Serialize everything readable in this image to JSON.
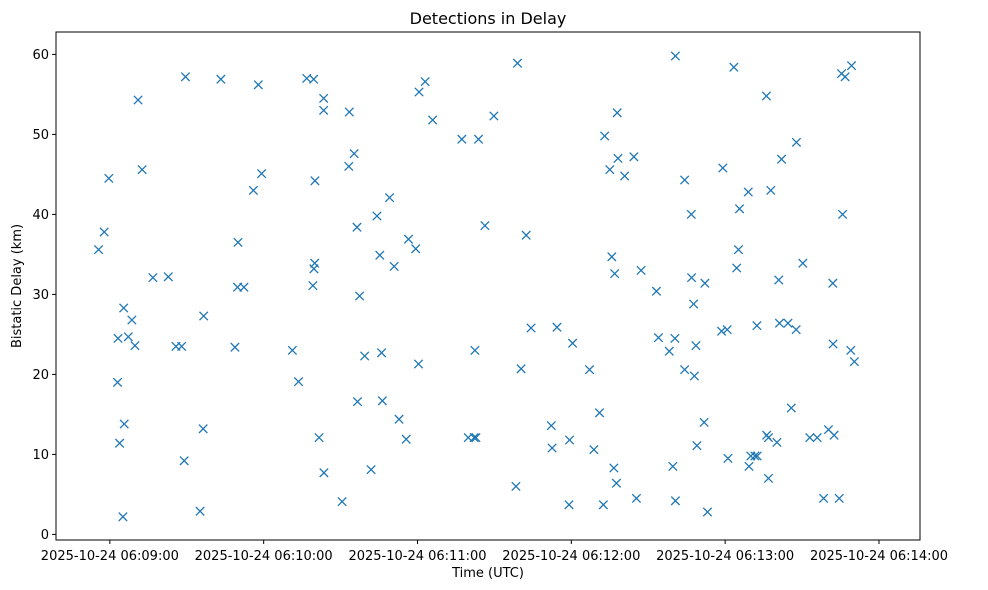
{
  "chart_data": {
    "type": "scatter",
    "title": "Detections in Delay",
    "xlabel": "Time (UTC)",
    "ylabel": "Bistatic Delay (km)",
    "marker": "x",
    "color": "#1f77b4",
    "x_unit": "seconds after 2025-10-24 06:09:00",
    "xlim": [
      -21,
      316
    ],
    "ylim": [
      -0.7,
      62.8
    ],
    "x_ticks": [
      {
        "value": 0,
        "label": "2025-10-24 06:09:00"
      },
      {
        "value": 60,
        "label": "2025-10-24 06:10:00"
      },
      {
        "value": 120,
        "label": "2025-10-24 06:11:00"
      },
      {
        "value": 180,
        "label": "2025-10-24 06:12:00"
      },
      {
        "value": 240,
        "label": "2025-10-24 06:13:00"
      },
      {
        "value": 300,
        "label": "2025-10-24 06:14:00"
      }
    ],
    "y_ticks": [
      {
        "value": 0,
        "label": "0"
      },
      {
        "value": 10,
        "label": "10"
      },
      {
        "value": 20,
        "label": "20"
      },
      {
        "value": 30,
        "label": "30"
      },
      {
        "value": 40,
        "label": "40"
      },
      {
        "value": 50,
        "label": "50"
      },
      {
        "value": 60,
        "label": "60"
      }
    ],
    "points": [
      [
        -4.4,
        35.6
      ],
      [
        -2.2,
        37.8
      ],
      [
        -0.4,
        44.5
      ],
      [
        3.0,
        19.0
      ],
      [
        3.2,
        24.5
      ],
      [
        3.8,
        11.4
      ],
      [
        5.1,
        2.2
      ],
      [
        5.4,
        28.3
      ],
      [
        5.6,
        13.8
      ],
      [
        7.2,
        24.7
      ],
      [
        8.6,
        26.8
      ],
      [
        9.8,
        23.6
      ],
      [
        11.0,
        54.3
      ],
      [
        12.6,
        45.6
      ],
      [
        16.8,
        32.1
      ],
      [
        22.8,
        32.2
      ],
      [
        25.8,
        23.5
      ],
      [
        28.0,
        23.5
      ],
      [
        29.0,
        9.2
      ],
      [
        29.5,
        57.2
      ],
      [
        35.2,
        2.9
      ],
      [
        36.4,
        13.2
      ],
      [
        36.6,
        27.3
      ],
      [
        43.3,
        56.9
      ],
      [
        48.8,
        23.4
      ],
      [
        49.8,
        30.9
      ],
      [
        50.0,
        36.5
      ],
      [
        52.3,
        30.9
      ],
      [
        56.0,
        43.0
      ],
      [
        57.9,
        56.2
      ],
      [
        59.2,
        45.1
      ],
      [
        71.2,
        23.0
      ],
      [
        73.6,
        19.1
      ],
      [
        76.8,
        57.0
      ],
      [
        79.2,
        31.1
      ],
      [
        79.6,
        33.2
      ],
      [
        79.9,
        33.9
      ],
      [
        80.0,
        44.2
      ],
      [
        79.5,
        56.9
      ],
      [
        81.6,
        12.1
      ],
      [
        83.4,
        54.5
      ],
      [
        83.4,
        53.0
      ],
      [
        83.5,
        7.7
      ],
      [
        90.6,
        4.1
      ],
      [
        93.2,
        46.0
      ],
      [
        93.4,
        52.8
      ],
      [
        95.3,
        47.6
      ],
      [
        96.4,
        38.4
      ],
      [
        96.6,
        16.6
      ],
      [
        97.4,
        29.8
      ],
      [
        99.4,
        22.3
      ],
      [
        101.9,
        8.1
      ],
      [
        104.2,
        39.8
      ],
      [
        105.3,
        34.9
      ],
      [
        106.0,
        22.7
      ],
      [
        106.3,
        16.7
      ],
      [
        109.1,
        42.1
      ],
      [
        110.9,
        33.5
      ],
      [
        112.8,
        14.4
      ],
      [
        115.6,
        11.9
      ],
      [
        116.5,
        36.9
      ],
      [
        119.3,
        35.7
      ],
      [
        120.4,
        21.3
      ],
      [
        120.6,
        55.3
      ],
      [
        123.0,
        56.6
      ],
      [
        125.9,
        51.8
      ],
      [
        137.3,
        49.4
      ],
      [
        139.8,
        12.1
      ],
      [
        142.1,
        12.1
      ],
      [
        142.4,
        23.0
      ],
      [
        142.8,
        12.1
      ],
      [
        143.8,
        49.4
      ],
      [
        146.3,
        38.6
      ],
      [
        149.8,
        52.3
      ],
      [
        158.4,
        6.0
      ],
      [
        159.0,
        58.9
      ],
      [
        160.4,
        20.7
      ],
      [
        162.4,
        37.4
      ],
      [
        164.3,
        25.8
      ],
      [
        172.2,
        13.6
      ],
      [
        172.5,
        10.8
      ],
      [
        174.4,
        25.9
      ],
      [
        179.1,
        3.7
      ],
      [
        179.3,
        11.8
      ],
      [
        180.5,
        23.9
      ],
      [
        187.1,
        20.6
      ],
      [
        188.8,
        10.6
      ],
      [
        191.0,
        15.2
      ],
      [
        192.5,
        3.7
      ],
      [
        193.0,
        49.8
      ],
      [
        195.0,
        45.6
      ],
      [
        195.8,
        34.7
      ],
      [
        196.6,
        8.3
      ],
      [
        196.9,
        32.6
      ],
      [
        197.6,
        6.4
      ],
      [
        197.9,
        52.7
      ],
      [
        198.2,
        47.0
      ],
      [
        200.8,
        44.8
      ],
      [
        204.4,
        47.2
      ],
      [
        205.4,
        4.5
      ],
      [
        207.2,
        33.0
      ],
      [
        213.2,
        30.4
      ],
      [
        214.0,
        24.6
      ],
      [
        218.2,
        22.9
      ],
      [
        219.6,
        8.5
      ],
      [
        220.4,
        24.5
      ],
      [
        220.6,
        59.8
      ],
      [
        220.6,
        4.2
      ],
      [
        224.2,
        44.3
      ],
      [
        224.2,
        20.6
      ],
      [
        226.8,
        40.0
      ],
      [
        226.9,
        32.1
      ],
      [
        227.7,
        28.8
      ],
      [
        228.0,
        19.8
      ],
      [
        228.6,
        23.6
      ],
      [
        229.0,
        11.1
      ],
      [
        231.8,
        14.0
      ],
      [
        232.1,
        31.4
      ],
      [
        233.1,
        2.8
      ],
      [
        238.6,
        25.4
      ],
      [
        239.1,
        45.8
      ],
      [
        240.8,
        25.6
      ],
      [
        241.1,
        9.5
      ],
      [
        243.4,
        58.4
      ],
      [
        244.5,
        33.3
      ],
      [
        245.2,
        35.6
      ],
      [
        245.6,
        40.7
      ],
      [
        249.0,
        42.8
      ],
      [
        249.3,
        8.5
      ],
      [
        250.0,
        9.8
      ],
      [
        251.6,
        9.8
      ],
      [
        252.4,
        26.1
      ],
      [
        252.5,
        9.8
      ],
      [
        256.1,
        54.8
      ],
      [
        256.2,
        12.4
      ],
      [
        256.9,
        7.0
      ],
      [
        256.9,
        12.1
      ],
      [
        257.8,
        43.0
      ],
      [
        260.2,
        11.5
      ],
      [
        260.9,
        31.8
      ],
      [
        261.2,
        26.4
      ],
      [
        262.0,
        46.9
      ],
      [
        264.5,
        26.4
      ],
      [
        265.8,
        15.8
      ],
      [
        267.7,
        25.6
      ],
      [
        267.8,
        49.0
      ],
      [
        270.3,
        33.9
      ],
      [
        273.0,
        12.1
      ],
      [
        275.9,
        12.1
      ],
      [
        278.4,
        4.5
      ],
      [
        280.3,
        13.1
      ],
      [
        282.0,
        31.4
      ],
      [
        282.1,
        23.8
      ],
      [
        282.5,
        12.4
      ],
      [
        284.5,
        4.5
      ],
      [
        285.4,
        57.6
      ],
      [
        285.8,
        40.0
      ],
      [
        286.8,
        57.2
      ],
      [
        289.0,
        23.0
      ],
      [
        289.3,
        58.6
      ],
      [
        290.4,
        21.6
      ]
    ]
  }
}
